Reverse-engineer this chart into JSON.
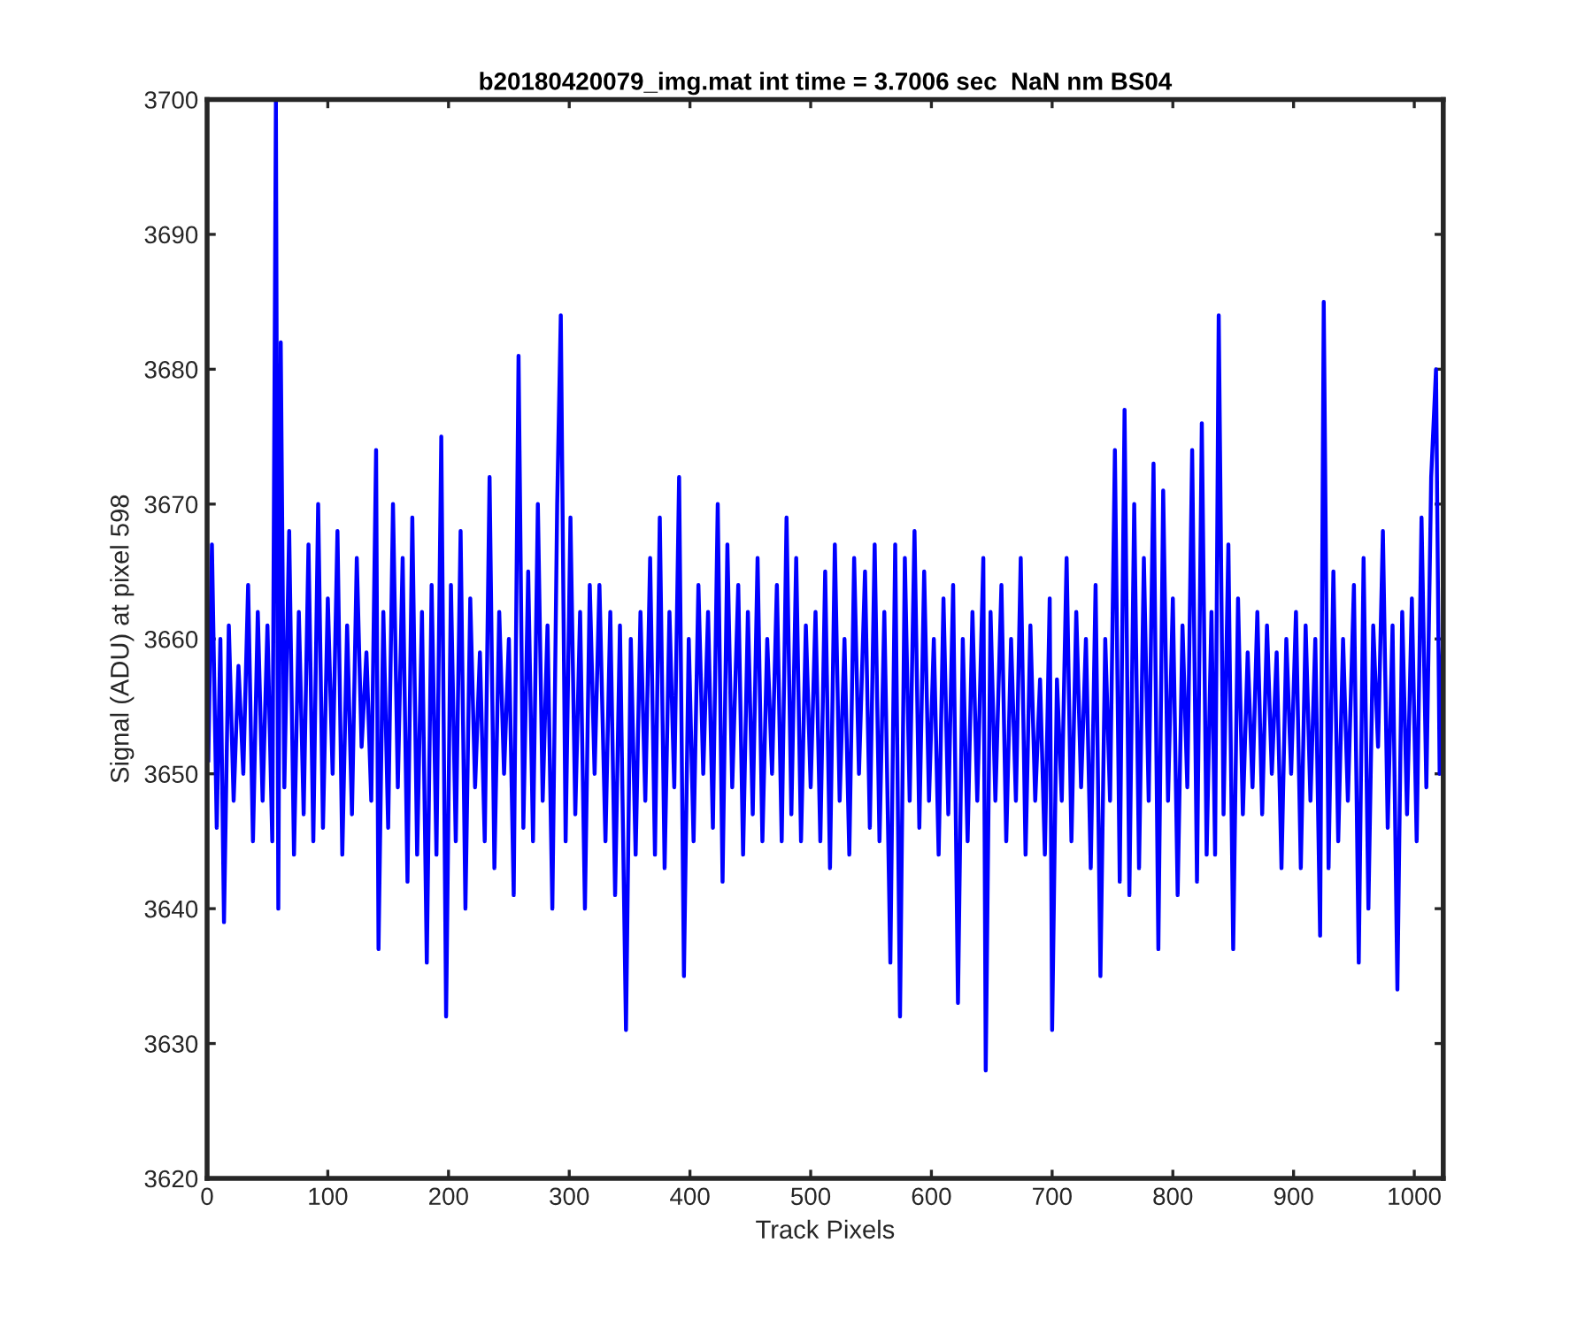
{
  "chart_data": {
    "type": "line",
    "title": "b20180420079_img.mat int time = 3.7006 sec  NaN nm BS04",
    "xlabel": "Track Pixels",
    "ylabel": "Signal (ADU) at pixel 598",
    "xlim": [
      0,
      1024
    ],
    "ylim": [
      3620,
      3700
    ],
    "xticks": [
      0,
      100,
      200,
      300,
      400,
      500,
      600,
      700,
      800,
      900,
      1000
    ],
    "yticks": [
      3620,
      3630,
      3640,
      3650,
      3660,
      3670,
      3680,
      3690,
      3700
    ],
    "grid": false,
    "legend": false,
    "marker": "none",
    "line_style": "solid",
    "series": [
      {
        "color": "#0000ff",
        "x": [
          1,
          4,
          8,
          11,
          14,
          18,
          22,
          26,
          30,
          34,
          38,
          42,
          46,
          50,
          54,
          57,
          59,
          61,
          64,
          68,
          72,
          76,
          80,
          84,
          88,
          92,
          96,
          100,
          104,
          108,
          112,
          116,
          120,
          124,
          128,
          132,
          136,
          140,
          142,
          146,
          150,
          154,
          158,
          162,
          166,
          170,
          174,
          178,
          182,
          186,
          190,
          194,
          198,
          202,
          206,
          210,
          214,
          218,
          222,
          226,
          230,
          234,
          238,
          242,
          246,
          250,
          254,
          258,
          262,
          266,
          270,
          274,
          278,
          282,
          286,
          290,
          293,
          297,
          301,
          305,
          309,
          313,
          317,
          321,
          325,
          330,
          334,
          338,
          342,
          347,
          351,
          355,
          359,
          363,
          367,
          371,
          375,
          379,
          383,
          387,
          391,
          395,
          399,
          403,
          407,
          411,
          415,
          419,
          423,
          427,
          431,
          435,
          440,
          444,
          448,
          452,
          456,
          460,
          464,
          468,
          472,
          476,
          480,
          484,
          488,
          492,
          496,
          500,
          504,
          508,
          512,
          516,
          520,
          524,
          528,
          532,
          536,
          540,
          545,
          549,
          553,
          557,
          561,
          566,
          570,
          574,
          578,
          582,
          586,
          590,
          594,
          598,
          602,
          606,
          610,
          614,
          618,
          622,
          626,
          630,
          634,
          638,
          643,
          645,
          649,
          653,
          658,
          662,
          666,
          670,
          674,
          678,
          682,
          686,
          690,
          694,
          698,
          700,
          704,
          708,
          712,
          716,
          720,
          724,
          728,
          732,
          736,
          740,
          744,
          748,
          752,
          756,
          760,
          764,
          768,
          772,
          776,
          780,
          784,
          788,
          792,
          796,
          800,
          804,
          808,
          812,
          816,
          820,
          824,
          828,
          832,
          835,
          838,
          842,
          846,
          850,
          854,
          858,
          862,
          866,
          870,
          874,
          878,
          882,
          886,
          890,
          894,
          898,
          902,
          906,
          910,
          914,
          918,
          922,
          925,
          929,
          933,
          937,
          941,
          945,
          950,
          954,
          958,
          962,
          966,
          970,
          974,
          978,
          982,
          986,
          990,
          994,
          998,
          1002,
          1006,
          1010,
          1014,
          1018,
          1021,
          1024
        ],
        "values": [
          3651,
          3667,
          3646,
          3660,
          3639,
          3661,
          3648,
          3658,
          3650,
          3664,
          3645,
          3662,
          3648,
          3661,
          3645,
          3700,
          3640,
          3682,
          3649,
          3668,
          3644,
          3662,
          3647,
          3667,
          3645,
          3670,
          3646,
          3663,
          3650,
          3668,
          3644,
          3661,
          3647,
          3666,
          3652,
          3659,
          3648,
          3674,
          3637,
          3662,
          3646,
          3670,
          3649,
          3666,
          3642,
          3669,
          3644,
          3662,
          3636,
          3664,
          3644,
          3675,
          3632,
          3664,
          3645,
          3668,
          3640,
          3663,
          3649,
          3659,
          3645,
          3672,
          3643,
          3662,
          3650,
          3660,
          3641,
          3681,
          3646,
          3665,
          3645,
          3670,
          3648,
          3661,
          3640,
          3670,
          3684,
          3645,
          3669,
          3647,
          3662,
          3640,
          3664,
          3650,
          3664,
          3645,
          3662,
          3641,
          3661,
          3631,
          3660,
          3644,
          3662,
          3648,
          3666,
          3644,
          3669,
          3643,
          3662,
          3649,
          3672,
          3635,
          3660,
          3645,
          3664,
          3650,
          3662,
          3646,
          3670,
          3642,
          3667,
          3649,
          3664,
          3644,
          3662,
          3647,
          3666,
          3645,
          3660,
          3650,
          3664,
          3645,
          3669,
          3647,
          3666,
          3645,
          3661,
          3649,
          3662,
          3645,
          3665,
          3643,
          3667,
          3648,
          3660,
          3644,
          3666,
          3650,
          3665,
          3646,
          3667,
          3645,
          3662,
          3636,
          3667,
          3632,
          3666,
          3648,
          3668,
          3646,
          3665,
          3648,
          3660,
          3644,
          3663,
          3647,
          3664,
          3633,
          3660,
          3645,
          3662,
          3648,
          3666,
          3628,
          3662,
          3648,
          3664,
          3645,
          3660,
          3648,
          3666,
          3644,
          3661,
          3648,
          3657,
          3644,
          3663,
          3631,
          3657,
          3648,
          3666,
          3645,
          3662,
          3649,
          3660,
          3643,
          3664,
          3635,
          3660,
          3648,
          3674,
          3642,
          3677,
          3641,
          3670,
          3643,
          3666,
          3648,
          3673,
          3637,
          3671,
          3648,
          3663,
          3641,
          3661,
          3649,
          3674,
          3642,
          3676,
          3644,
          3662,
          3644,
          3684,
          3647,
          3667,
          3637,
          3663,
          3647,
          3659,
          3649,
          3662,
          3647,
          3661,
          3650,
          3659,
          3643,
          3660,
          3650,
          3662,
          3643,
          3661,
          3648,
          3660,
          3638,
          3685,
          3643,
          3665,
          3645,
          3660,
          3648,
          3664,
          3636,
          3666,
          3640,
          3661,
          3652,
          3668,
          3646,
          3661,
          3634,
          3662,
          3647,
          3663,
          3645,
          3669,
          3649,
          3672,
          3680,
          3650,
          3661
        ]
      }
    ]
  }
}
